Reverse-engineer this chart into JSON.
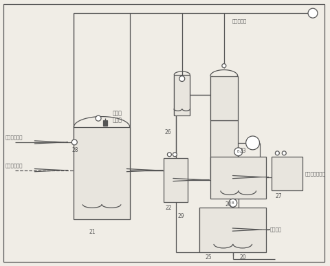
{
  "bg": "#f0ede6",
  "lc": "#555555",
  "lw": 0.9,
  "fs": 5.2,
  "labels": {
    "from_pool": "来自一步液池",
    "from_boiler": "来自余热锅炉",
    "to_dry": "去干燥液高位罐",
    "to_react": "去反应池",
    "aluminate": "铝酸钙\n加料口",
    "water_net": "自来水管网",
    "n20": "20",
    "n21": "21",
    "n22": "22",
    "n23": "23",
    "n24": "24",
    "n25": "25",
    "n26": "26",
    "n27": "27",
    "n28": "28",
    "n29": "29"
  }
}
